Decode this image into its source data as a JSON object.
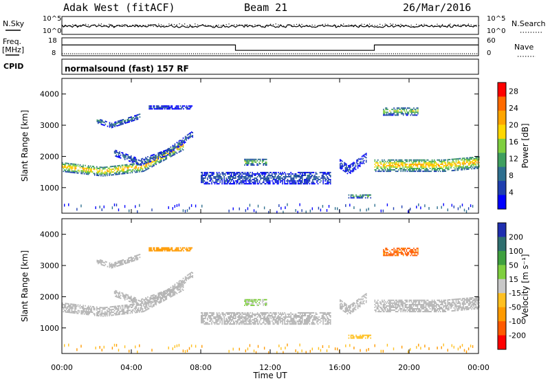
{
  "header": {
    "station": "Adak West (fitACF)",
    "beam": "Beam 21",
    "date": "26/Mar/2016"
  },
  "summary": {
    "nsky_label": "N.Sky",
    "nsearch_label": "N.Search",
    "freq_label": "Freq.",
    "freq_unit": "[MHz]",
    "nave_label": "Nave",
    "cpid_label": "CPID",
    "cpid_text": "normalsound (fast) 157 RF",
    "noise_ticks_left": [
      "10^5",
      "10^0"
    ],
    "noise_ticks_right": [
      "10^5",
      "10^0"
    ],
    "freq_ticks": [
      "18",
      "8"
    ],
    "nave_ticks": [
      "60",
      "0"
    ]
  },
  "colors": {
    "frame": "#000000",
    "power_scale": [
      "#0000ff",
      "#1f3fb0",
      "#2e6f8f",
      "#3f9f5f",
      "#7fcf3f",
      "#ffd700",
      "#ffa500",
      "#ff6a00",
      "#ff0000"
    ],
    "velocity_scale": [
      "#1f2fb0",
      "#2f6f6f",
      "#3fa03f",
      "#7fcf3f",
      "#c8c8c8",
      "#ffc020",
      "#ff9a00",
      "#ff5a00",
      "#ff0000"
    ],
    "ground_scatter": "#b4b4b4"
  },
  "chart_data": [
    {
      "type": "heatmap",
      "name": "power",
      "ylabel": "Slant Range [km]",
      "xlabel": "Time UT",
      "xlim": [
        "00:00",
        "24:00"
      ],
      "ylim": [
        180,
        4500
      ],
      "x_ticks": [
        "00:00",
        "04:00",
        "08:00",
        "12:00",
        "16:00",
        "20:00",
        "00:00"
      ],
      "y_ticks": [
        1000,
        2000,
        3000,
        4000
      ],
      "colorbar": {
        "label": "Power [dB]",
        "ticks": [
          4,
          8,
          12,
          16,
          20,
          24,
          28
        ],
        "range": [
          0,
          30
        ]
      },
      "regions": [
        {
          "t": [
            0.0,
            7.0
          ],
          "r_start": [
            1500,
            1350,
            1500,
            2200
          ],
          "width": 300,
          "value": 22
        },
        {
          "t": [
            3.0,
            7.5
          ],
          "r_start": [
            2000,
            1700,
            2000,
            2600
          ],
          "width": 200,
          "value": 8
        },
        {
          "t": [
            2.0,
            4.5
          ],
          "r_start": [
            3050,
            2900,
            3050,
            3200
          ],
          "width": 150,
          "value": 10
        },
        {
          "t": [
            5.0,
            7.5
          ],
          "r_start": [
            3500,
            3500,
            3500,
            3500
          ],
          "width": 100,
          "value": 5
        },
        {
          "t": [
            8.0,
            15.5
          ],
          "r_start": [
            1100,
            1100,
            1100,
            1100
          ],
          "width": 400,
          "value": 7
        },
        {
          "t": [
            10.5,
            11.8
          ],
          "r_start": [
            1700,
            1700,
            1700,
            1700
          ],
          "width": 200,
          "value": 16
        },
        {
          "t": [
            16.0,
            17.5
          ],
          "r_start": [
            1600,
            1400,
            1600,
            1800
          ],
          "width": 300,
          "value": 6
        },
        {
          "t": [
            16.5,
            17.8
          ],
          "r_start": [
            650,
            650,
            650,
            650
          ],
          "width": 120,
          "value": 14
        },
        {
          "t": [
            18.0,
            24.0
          ],
          "r_start": [
            1500,
            1500,
            1500,
            1600
          ],
          "width": 400,
          "value": 22
        },
        {
          "t": [
            18.5,
            20.5
          ],
          "r_start": [
            3300,
            3300,
            3300,
            3300
          ],
          "width": 250,
          "value": 16
        }
      ]
    },
    {
      "type": "heatmap",
      "name": "velocity",
      "ylabel": "Slant Range [km]",
      "xlabel": "Time UT",
      "xlim": [
        "00:00",
        "24:00"
      ],
      "ylim": [
        180,
        4500
      ],
      "x_ticks": [
        "00:00",
        "04:00",
        "08:00",
        "12:00",
        "16:00",
        "20:00",
        "00:00"
      ],
      "y_ticks": [
        1000,
        2000,
        3000,
        4000
      ],
      "colorbar": {
        "label": "Velocity [m s⁻¹]",
        "ticks": [
          200,
          100,
          50,
          15,
          -15,
          -50,
          -100,
          -200
        ],
        "range": [
          -250,
          250
        ]
      },
      "regions": [
        {
          "t": [
            0.0,
            7.0
          ],
          "r_start": [
            1500,
            1350,
            1500,
            2200
          ],
          "width": 300,
          "value": 0
        },
        {
          "t": [
            3.0,
            7.5
          ],
          "r_start": [
            2000,
            1700,
            2000,
            2600
          ],
          "width": 200,
          "value": 0
        },
        {
          "t": [
            2.0,
            4.5
          ],
          "r_start": [
            3050,
            2900,
            3050,
            3200
          ],
          "width": 150,
          "value": 0
        },
        {
          "t": [
            5.0,
            7.5
          ],
          "r_start": [
            3450,
            3450,
            3450,
            3450
          ],
          "width": 100,
          "value": -120
        },
        {
          "t": [
            8.0,
            15.5
          ],
          "r_start": [
            1100,
            1100,
            1100,
            1100
          ],
          "width": 400,
          "value": 0
        },
        {
          "t": [
            10.5,
            11.8
          ],
          "r_start": [
            1700,
            1700,
            1700,
            1700
          ],
          "width": 200,
          "value": 30
        },
        {
          "t": [
            16.0,
            17.5
          ],
          "r_start": [
            1600,
            1400,
            1600,
            1800
          ],
          "width": 300,
          "value": 0
        },
        {
          "t": [
            16.5,
            17.8
          ],
          "r_start": [
            650,
            650,
            650,
            650
          ],
          "width": 120,
          "value": -60
        },
        {
          "t": [
            18.0,
            24.0
          ],
          "r_start": [
            1500,
            1500,
            1500,
            1600
          ],
          "width": 400,
          "value": 0
        },
        {
          "t": [
            18.5,
            20.5
          ],
          "r_start": [
            3300,
            3300,
            3300,
            3300
          ],
          "width": 250,
          "value": -150
        }
      ]
    }
  ],
  "summary_series": {
    "freq": [
      {
        "t": [
          0.0,
          10.0
        ],
        "value": 14
      },
      {
        "t": [
          10.0,
          18.0
        ],
        "value": 11
      },
      {
        "t": [
          18.0,
          24.0
        ],
        "value": 14
      }
    ],
    "nave_value": 8
  }
}
